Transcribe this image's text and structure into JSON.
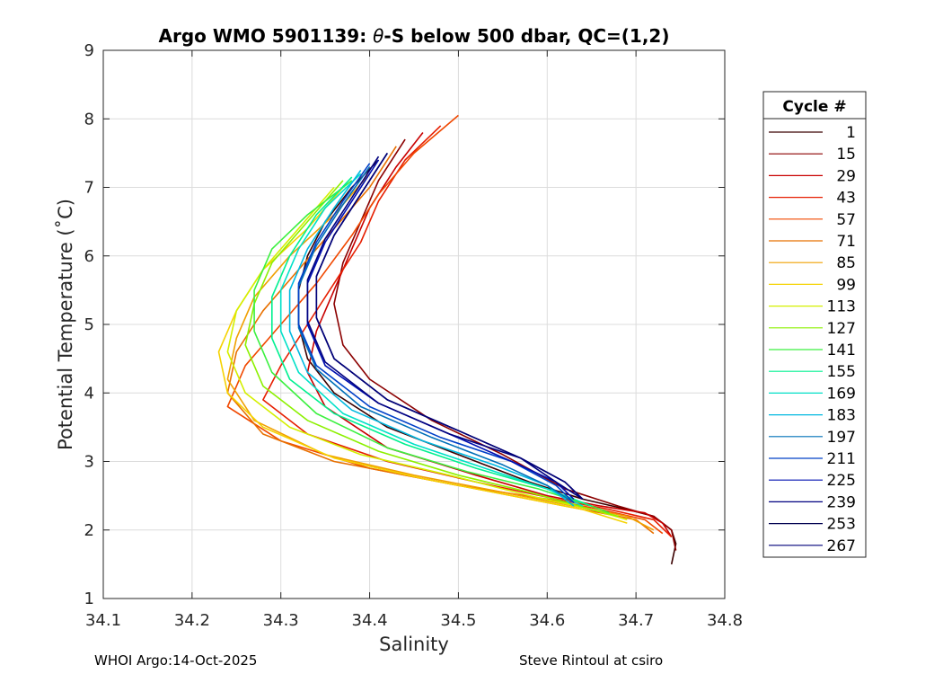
{
  "chart_data": {
    "type": "line",
    "title_prefix": "Argo WMO 5901139: ",
    "title_theta": "θ",
    "title_suffix": "-S below 500 dbar,  QC=(1,2)",
    "xlabel": "Salinity",
    "ylabel": "Potential Temperature (˚C)",
    "xlim": [
      34.1,
      34.8
    ],
    "ylim": [
      1,
      9
    ],
    "xticks": [
      34.1,
      34.2,
      34.3,
      34.4,
      34.5,
      34.6,
      34.7,
      34.8
    ],
    "xtick_labels": [
      "34.1",
      "34.2",
      "34.3",
      "34.4",
      "34.5",
      "34.6",
      "34.7",
      "34.8"
    ],
    "yticks": [
      1,
      2,
      3,
      4,
      5,
      6,
      7,
      8,
      9
    ],
    "ytick_labels": [
      "1",
      "2",
      "3",
      "4",
      "5",
      "6",
      "7",
      "8",
      "9"
    ],
    "grid": true,
    "legend": {
      "title": "Cycle #",
      "placement": "right-outside",
      "entries": [
        {
          "label": "1",
          "color": "#3a0000"
        },
        {
          "label": "15",
          "color": "#8b0000"
        },
        {
          "label": "29",
          "color": "#c80000"
        },
        {
          "label": "43",
          "color": "#e61e00"
        },
        {
          "label": "57",
          "color": "#f04800"
        },
        {
          "label": "71",
          "color": "#e87000"
        },
        {
          "label": "85",
          "color": "#f0a000"
        },
        {
          "label": "99",
          "color": "#f5d200"
        },
        {
          "label": "113",
          "color": "#d4ef00"
        },
        {
          "label": "127",
          "color": "#8cf000"
        },
        {
          "label": "141",
          "color": "#3cf040"
        },
        {
          "label": "155",
          "color": "#00f090"
        },
        {
          "label": "169",
          "color": "#00e0c8"
        },
        {
          "label": "183",
          "color": "#00b8e0"
        },
        {
          "label": "197",
          "color": "#0070b8"
        },
        {
          "label": "211",
          "color": "#0040c8"
        },
        {
          "label": "225",
          "color": "#0010b0"
        },
        {
          "label": "239",
          "color": "#000080"
        },
        {
          "label": "253",
          "color": "#000050"
        },
        {
          "label": "267",
          "color": "#00007a"
        }
      ]
    },
    "series": [
      {
        "name": "1",
        "salinity": [
          34.41,
          34.38,
          34.35,
          34.33,
          34.32,
          34.32,
          34.33,
          34.36,
          34.42,
          34.5,
          34.58,
          34.64,
          34.69,
          34.72,
          34.74,
          34.745,
          34.74
        ],
        "theta": [
          7.4,
          7.0,
          6.5,
          6.0,
          5.5,
          5.0,
          4.5,
          4.0,
          3.5,
          3.1,
          2.7,
          2.45,
          2.3,
          2.2,
          2.0,
          1.8,
          1.5
        ]
      },
      {
        "name": "15",
        "salinity": [
          34.44,
          34.41,
          34.39,
          34.37,
          34.36,
          34.37,
          34.4,
          34.47,
          34.55,
          34.62,
          34.68,
          34.72,
          34.74,
          34.745
        ],
        "theta": [
          7.7,
          7.1,
          6.5,
          5.9,
          5.3,
          4.7,
          4.2,
          3.6,
          3.1,
          2.6,
          2.35,
          2.2,
          2.0,
          1.7
        ]
      },
      {
        "name": "29",
        "salinity": [
          34.46,
          34.43,
          34.4,
          34.38,
          34.36,
          34.34,
          34.33,
          34.35,
          34.42,
          34.52,
          34.6,
          34.66,
          34.71,
          34.73,
          34.74
        ],
        "theta": [
          7.8,
          7.3,
          6.7,
          6.1,
          5.5,
          4.9,
          4.3,
          3.8,
          3.2,
          2.8,
          2.5,
          2.35,
          2.25,
          2.1,
          1.9
        ]
      },
      {
        "name": "43",
        "salinity": [
          34.48,
          34.44,
          34.41,
          34.39,
          34.36,
          34.33,
          34.3,
          34.28,
          34.33,
          34.42,
          34.52,
          34.61,
          34.67,
          34.72,
          34.74
        ],
        "theta": [
          7.9,
          7.4,
          6.8,
          6.2,
          5.6,
          5.0,
          4.4,
          3.9,
          3.4,
          3.0,
          2.7,
          2.45,
          2.3,
          2.15,
          1.9
        ]
      },
      {
        "name": "57",
        "salinity": [
          34.5,
          34.45,
          34.41,
          34.38,
          34.34,
          34.3,
          34.26,
          34.24,
          34.3,
          34.4,
          34.5,
          34.6,
          34.66,
          34.71,
          34.73
        ],
        "theta": [
          8.05,
          7.5,
          6.9,
          6.3,
          5.6,
          5.0,
          4.4,
          3.8,
          3.3,
          2.9,
          2.65,
          2.45,
          2.3,
          2.15,
          1.95
        ]
      },
      {
        "name": "71",
        "salinity": [
          34.43,
          34.4,
          34.36,
          34.32,
          34.28,
          34.25,
          34.24,
          34.28,
          34.36,
          34.46,
          34.56,
          34.64,
          34.7,
          34.72
        ],
        "theta": [
          7.6,
          7.0,
          6.4,
          5.8,
          5.2,
          4.6,
          4.0,
          3.4,
          3.0,
          2.75,
          2.5,
          2.3,
          2.15,
          1.95
        ]
      },
      {
        "name": "85",
        "salinity": [
          34.4,
          34.36,
          34.31,
          34.27,
          34.25,
          34.24,
          34.27,
          34.35,
          34.45,
          34.55,
          34.63,
          34.69,
          34.72
        ],
        "theta": [
          7.2,
          6.6,
          6.0,
          5.4,
          4.8,
          4.2,
          3.6,
          3.1,
          2.8,
          2.55,
          2.35,
          2.2,
          2.0
        ]
      },
      {
        "name": "99",
        "salinity": [
          34.37,
          34.33,
          34.28,
          34.25,
          34.23,
          34.24,
          34.28,
          34.36,
          34.46,
          34.56,
          34.64,
          34.69
        ],
        "theta": [
          7.0,
          6.4,
          5.8,
          5.2,
          4.6,
          4.0,
          3.5,
          3.05,
          2.75,
          2.5,
          2.3,
          2.1
        ]
      },
      {
        "name": "113",
        "salinity": [
          34.36,
          34.32,
          34.28,
          34.25,
          34.24,
          34.26,
          34.31,
          34.39,
          34.49,
          34.58,
          34.65,
          34.69
        ],
        "theta": [
          7.0,
          6.4,
          5.8,
          5.2,
          4.6,
          4.0,
          3.5,
          3.1,
          2.8,
          2.5,
          2.3,
          2.15
        ]
      },
      {
        "name": "127",
        "salinity": [
          34.37,
          34.33,
          34.29,
          34.27,
          34.26,
          34.28,
          34.33,
          34.41,
          34.5,
          34.58,
          34.65,
          34.68
        ],
        "theta": [
          7.1,
          6.5,
          5.9,
          5.3,
          4.7,
          4.1,
          3.6,
          3.15,
          2.8,
          2.55,
          2.3,
          2.2
        ]
      },
      {
        "name": "141",
        "salinity": [
          34.38,
          34.33,
          34.29,
          34.27,
          34.27,
          34.29,
          34.34,
          34.42,
          34.51,
          34.59,
          34.65,
          34.67
        ],
        "theta": [
          7.1,
          6.6,
          6.1,
          5.5,
          4.9,
          4.3,
          3.7,
          3.2,
          2.85,
          2.6,
          2.35,
          2.25
        ]
      },
      {
        "name": "155",
        "salinity": [
          34.38,
          34.34,
          34.31,
          34.29,
          34.29,
          34.31,
          34.36,
          34.44,
          34.52,
          34.6,
          34.65
        ],
        "theta": [
          7.15,
          6.6,
          6.0,
          5.4,
          4.8,
          4.2,
          3.7,
          3.25,
          2.9,
          2.6,
          2.35
        ]
      },
      {
        "name": "169",
        "salinity": [
          34.39,
          34.35,
          34.32,
          34.3,
          34.3,
          34.32,
          34.37,
          34.45,
          34.53,
          34.6,
          34.64
        ],
        "theta": [
          7.2,
          6.7,
          6.1,
          5.5,
          4.9,
          4.3,
          3.7,
          3.25,
          2.9,
          2.6,
          2.35
        ]
      },
      {
        "name": "183",
        "salinity": [
          34.39,
          34.36,
          34.33,
          34.31,
          34.31,
          34.33,
          34.38,
          34.46,
          34.54,
          34.6,
          34.63
        ],
        "theta": [
          7.25,
          6.7,
          6.1,
          5.5,
          4.9,
          4.3,
          3.75,
          3.3,
          2.95,
          2.65,
          2.35
        ]
      },
      {
        "name": "197",
        "salinity": [
          34.4,
          34.37,
          34.34,
          34.32,
          34.32,
          34.34,
          34.39,
          34.47,
          34.55,
          34.6,
          34.63
        ],
        "theta": [
          7.3,
          6.75,
          6.15,
          5.55,
          4.95,
          4.35,
          3.8,
          3.35,
          2.95,
          2.65,
          2.4
        ]
      },
      {
        "name": "211",
        "salinity": [
          34.4,
          34.37,
          34.34,
          34.32,
          34.32,
          34.34,
          34.4,
          34.48,
          34.56,
          34.61,
          34.63
        ],
        "theta": [
          7.35,
          6.8,
          6.2,
          5.6,
          5.0,
          4.4,
          3.8,
          3.35,
          3.0,
          2.65,
          2.4
        ]
      },
      {
        "name": "225",
        "salinity": [
          34.41,
          34.38,
          34.35,
          34.33,
          34.33,
          34.35,
          34.41,
          34.49,
          34.56,
          34.61,
          34.63
        ],
        "theta": [
          7.4,
          6.8,
          6.2,
          5.6,
          5.0,
          4.4,
          3.85,
          3.4,
          3.0,
          2.7,
          2.45
        ]
      },
      {
        "name": "239",
        "salinity": [
          34.41,
          34.38,
          34.35,
          34.33,
          34.33,
          34.35,
          34.41,
          34.49,
          34.57,
          34.61,
          34.64
        ],
        "theta": [
          7.45,
          6.85,
          6.25,
          5.65,
          5.05,
          4.45,
          3.85,
          3.4,
          3.05,
          2.7,
          2.45
        ]
      },
      {
        "name": "253",
        "salinity": [
          34.42,
          34.39,
          34.36,
          34.34,
          34.34,
          34.36,
          34.42,
          34.5,
          34.57,
          34.62,
          34.64
        ],
        "theta": [
          7.5,
          6.9,
          6.3,
          5.7,
          5.1,
          4.5,
          3.9,
          3.45,
          3.05,
          2.7,
          2.45
        ]
      },
      {
        "name": "267",
        "salinity": [
          34.42,
          34.39,
          34.36,
          34.34,
          34.34,
          34.36,
          34.42,
          34.5,
          34.57,
          34.62,
          34.64
        ],
        "theta": [
          7.5,
          6.9,
          6.3,
          5.7,
          5.1,
          4.5,
          3.9,
          3.45,
          3.05,
          2.7,
          2.45
        ]
      }
    ]
  },
  "footer": {
    "left": "WHOI Argo:14-Oct-2025",
    "right": "Steve Rintoul at csiro"
  }
}
